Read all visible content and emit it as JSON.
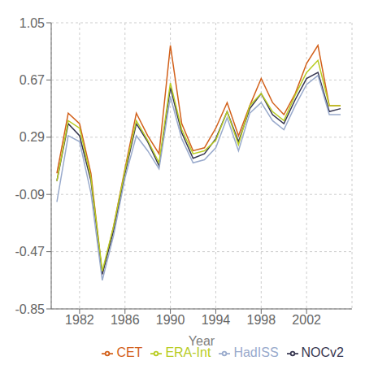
{
  "chart_data": {
    "type": "line",
    "title": "",
    "xlabel": "Year",
    "x": [
      1980,
      1981,
      1982,
      1983,
      1984,
      1985,
      1986,
      1987,
      1988,
      1989,
      1990,
      1991,
      1992,
      1993,
      1994,
      1995,
      1996,
      1997,
      1998,
      1999,
      2000,
      2001,
      2002,
      2003,
      2004,
      2005
    ],
    "series": [
      {
        "name": "CET",
        "color": "#d2601a",
        "values": [
          0.05,
          0.45,
          0.38,
          0.05,
          -0.62,
          -0.3,
          0.08,
          0.45,
          0.3,
          0.18,
          0.9,
          0.38,
          0.2,
          0.22,
          0.35,
          0.52,
          0.3,
          0.5,
          0.68,
          0.52,
          0.44,
          0.58,
          0.78,
          0.9,
          0.5,
          0.5
        ]
      },
      {
        "name": "NOCv2",
        "color": "#363650",
        "values": [
          0.0,
          0.38,
          0.3,
          0.0,
          -0.62,
          -0.33,
          0.05,
          0.38,
          0.26,
          0.1,
          0.62,
          0.32,
          0.15,
          0.18,
          0.28,
          0.46,
          0.26,
          0.48,
          0.58,
          0.44,
          0.38,
          0.54,
          0.68,
          0.72,
          0.46,
          0.48
        ]
      },
      {
        "name": "ERA-Int",
        "color": "#b8cc22",
        "values": [
          0.0,
          0.4,
          0.35,
          0.02,
          -0.6,
          -0.3,
          0.07,
          0.4,
          0.27,
          0.12,
          0.65,
          0.34,
          0.18,
          0.2,
          0.27,
          0.46,
          0.24,
          0.5,
          0.58,
          0.46,
          0.4,
          0.57,
          0.72,
          0.8,
          0.5,
          0.5
        ]
      },
      {
        "name": "HadISS",
        "color": "#99aacc",
        "values": [
          -0.14,
          0.3,
          0.26,
          -0.08,
          -0.66,
          -0.36,
          0.02,
          0.3,
          0.2,
          0.08,
          0.56,
          0.28,
          0.12,
          0.14,
          0.22,
          0.42,
          0.2,
          0.45,
          0.52,
          0.4,
          0.34,
          0.5,
          0.64,
          0.7,
          0.44,
          0.44
        ]
      }
    ],
    "xlim": [
      1979.5,
      2006.0
    ],
    "xticks": [
      1982,
      1986,
      1990,
      1994,
      1998,
      2002
    ],
    "ylim": [
      -0.85,
      1.05
    ],
    "yticks": [
      -0.85,
      -0.47,
      -0.09,
      0.29,
      0.67,
      1.05
    ],
    "grid": true,
    "legend": "lower right"
  }
}
